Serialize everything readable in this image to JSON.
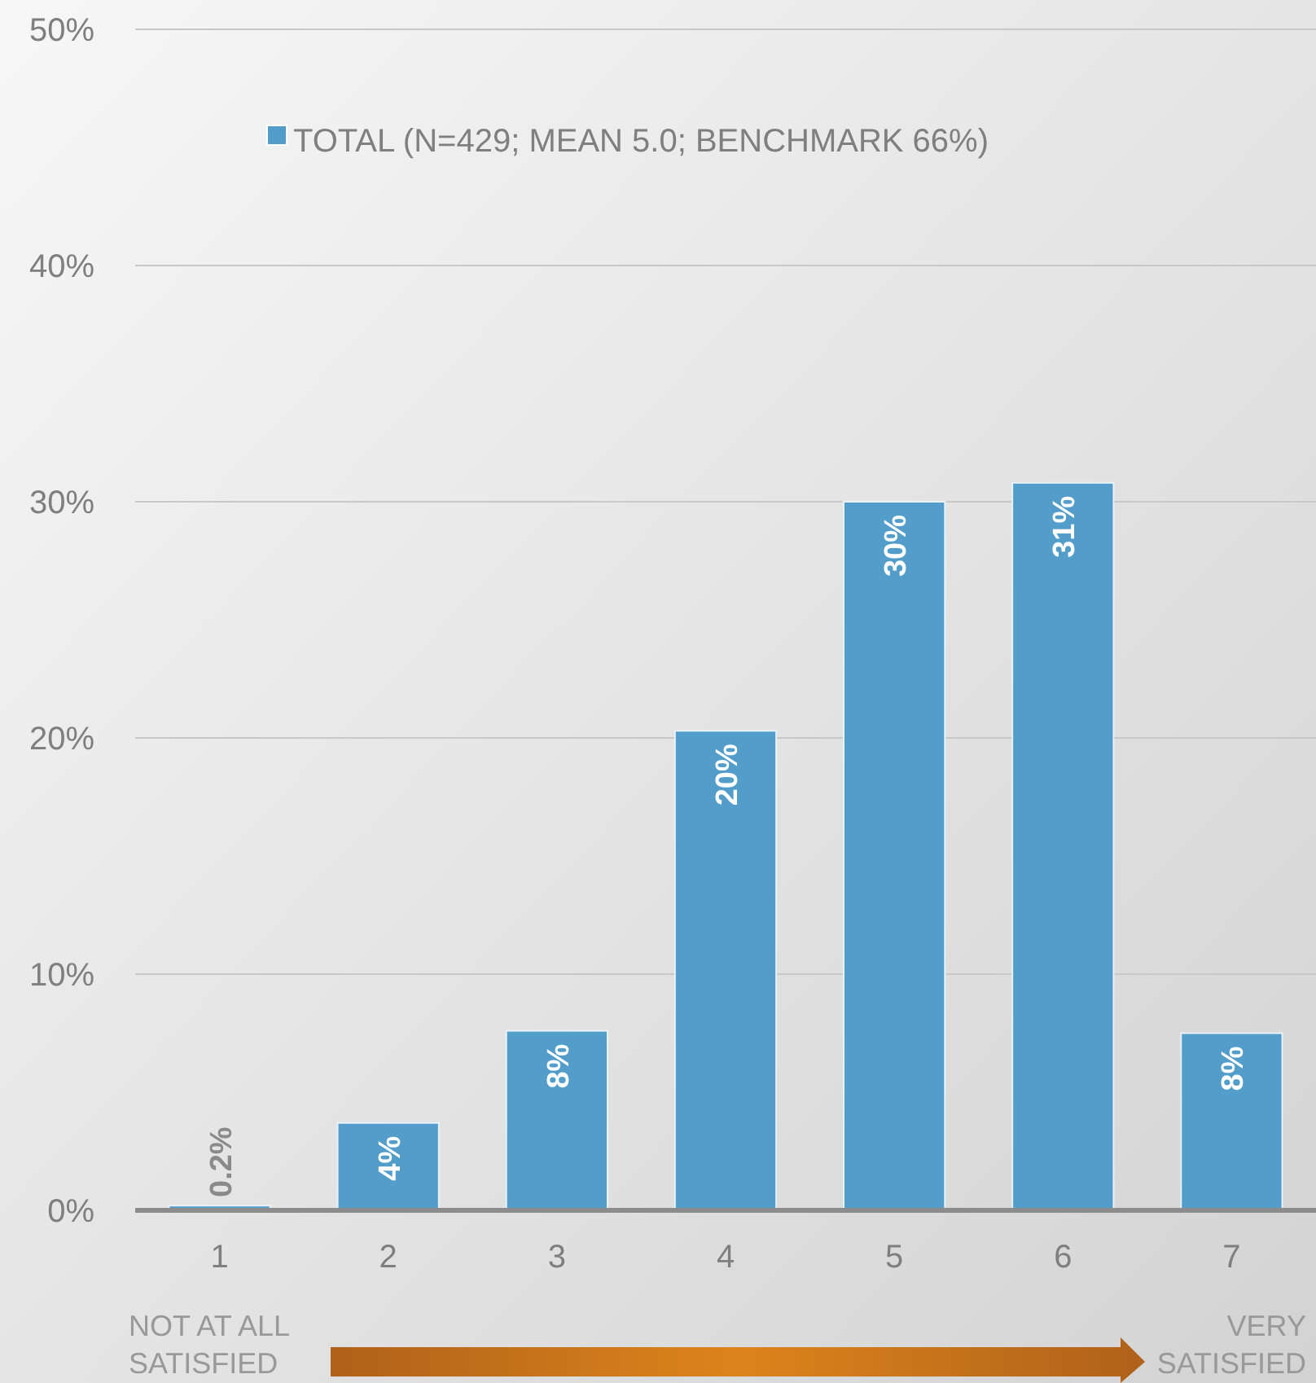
{
  "chart_data": {
    "type": "bar",
    "categories": [
      "1",
      "2",
      "3",
      "4",
      "5",
      "6",
      "7"
    ],
    "series": [
      {
        "name": "TOTAL (N=429; MEAN 5.0; BENCHMARK 66%)",
        "color": "#529dca",
        "values": [
          0.2,
          3.7,
          7.6,
          20.3,
          30.0,
          30.8,
          7.5
        ],
        "value_labels": [
          "0.2%",
          "4%",
          "8%",
          "20%",
          "30%",
          "31%",
          "8%"
        ]
      }
    ],
    "ylim": [
      0,
      50
    ],
    "yticks": [
      {
        "value": 0,
        "label": "0%"
      },
      {
        "value": 10,
        "label": "10%"
      },
      {
        "value": 20,
        "label": "20%"
      },
      {
        "value": 30,
        "label": "30%"
      },
      {
        "value": 40,
        "label": "40%"
      },
      {
        "value": 50,
        "label": "50%"
      }
    ],
    "grid": "y",
    "legend": "top",
    "annotations": [
      "NOT AT ALL SATISFIED",
      "VERY SATISFIED"
    ]
  }
}
